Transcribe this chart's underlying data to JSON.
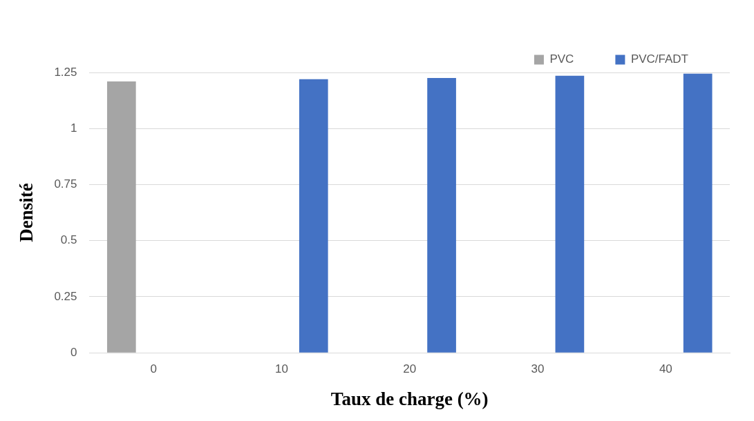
{
  "chart_data": {
    "type": "bar",
    "xlabel": "Taux de charge (%)",
    "ylabel": "Densité",
    "categories": [
      "0",
      "10",
      "20",
      "30",
      "40"
    ],
    "series": [
      {
        "name": "PVC",
        "color": "#a5a5a5",
        "values": [
          1.21,
          null,
          null,
          null,
          null
        ]
      },
      {
        "name": "PVC/FADT",
        "color": "#4472c4",
        "values": [
          null,
          1.22,
          1.225,
          1.235,
          1.245
        ]
      }
    ],
    "ylim": [
      0,
      1.25
    ],
    "yticks": [
      0,
      0.25,
      0.5,
      0.75,
      1,
      1.25
    ],
    "grid": "y",
    "legend": "top right"
  }
}
